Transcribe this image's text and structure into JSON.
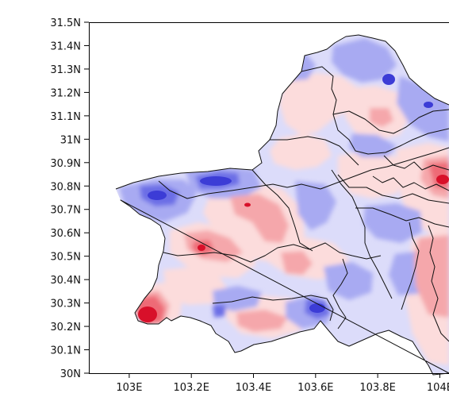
{
  "map": {
    "y_ticks": [
      {
        "label": "31.5N",
        "lat": 31.5
      },
      {
        "label": "31.4N",
        "lat": 31.4
      },
      {
        "label": "31.3N",
        "lat": 31.3
      },
      {
        "label": "31.2N",
        "lat": 31.2
      },
      {
        "label": "31.1N",
        "lat": 31.1
      },
      {
        "label": "31N",
        "lat": 31.0
      },
      {
        "label": "30.9N",
        "lat": 30.9
      },
      {
        "label": "30.8N",
        "lat": 30.8
      },
      {
        "label": "30.7N",
        "lat": 30.7
      },
      {
        "label": "30.6N",
        "lat": 30.6
      },
      {
        "label": "30.5N",
        "lat": 30.5
      },
      {
        "label": "30.4N",
        "lat": 30.4
      },
      {
        "label": "30.3N",
        "lat": 30.3
      },
      {
        "label": "30.2N",
        "lat": 30.2
      },
      {
        "label": "30.1N",
        "lat": 30.1
      },
      {
        "label": "30N",
        "lat": 30.0
      }
    ],
    "x_ticks": [
      {
        "label": "103E",
        "lon": 103.0
      },
      {
        "label": "103.2E",
        "lon": 103.2
      },
      {
        "label": "103.4E",
        "lon": 103.4
      },
      {
        "label": "103.6E",
        "lon": 103.6
      },
      {
        "label": "103.8E",
        "lon": 103.8
      },
      {
        "label": "104E",
        "lon": 104.0
      }
    ],
    "lon_range": [
      102.87,
      104.05
    ],
    "lat_range": [
      30.0,
      31.5
    ],
    "colors": {
      "blue_light": "#dcdcfa",
      "blue_mid": "#a8aaf2",
      "blue_strong": "#6c6ee6",
      "blue_dark": "#3c3cd6",
      "red_light": "#fcdcdc",
      "red_mid": "#f5a7ab",
      "red_strong": "#ee6a76",
      "red_dark": "#d8102a"
    }
  }
}
